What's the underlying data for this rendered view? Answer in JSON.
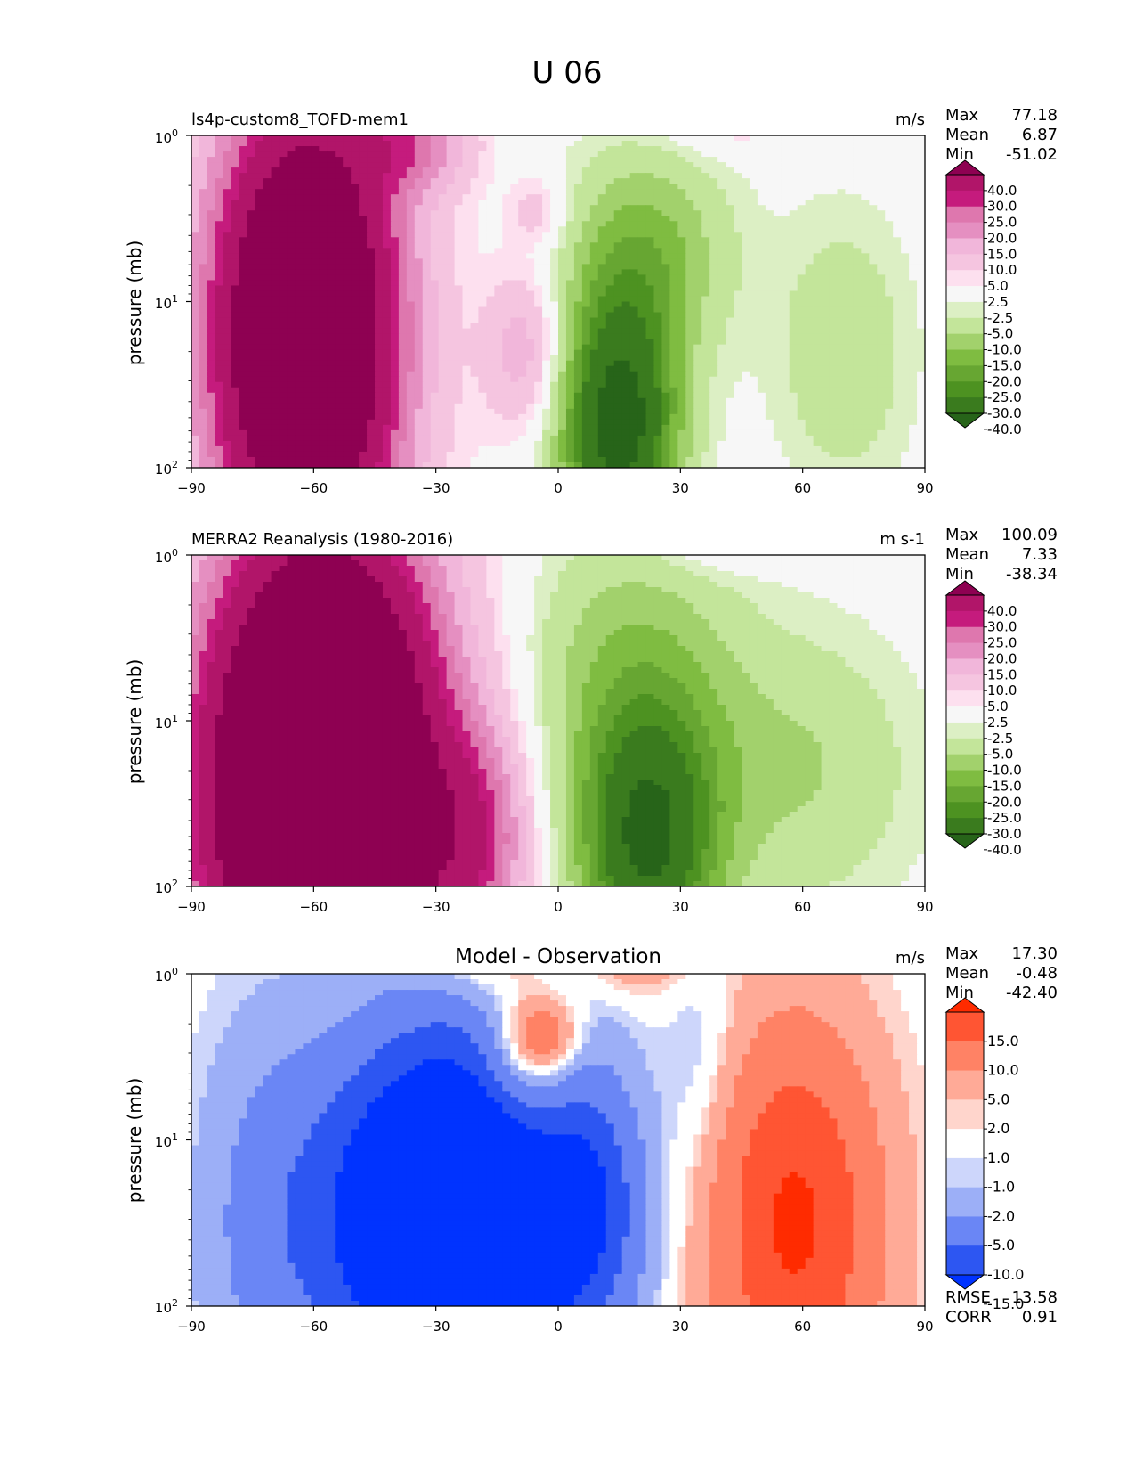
{
  "figure": {
    "title": "U 06"
  },
  "colors": {
    "main_levels": [
      -40,
      -30,
      -25,
      -20,
      -15,
      -10,
      -5,
      -2.5,
      2.5,
      5,
      10,
      15,
      20,
      25,
      30,
      40
    ],
    "main_bins": [
      "#276419",
      "#3a7b1e",
      "#4d9221",
      "#67a632",
      "#7fbc41",
      "#a2d16c",
      "#c3e59a",
      "#dcefc4",
      "#f7f7f7",
      "#fde0ef",
      "#f5c5e0",
      "#f1b6da",
      "#e58fc1",
      "#de77ae",
      "#c51b7d",
      "#b11569",
      "#8e0152"
    ],
    "diff_levels": [
      -15,
      -10,
      -5,
      -2,
      -1,
      1,
      2,
      5,
      10,
      15
    ],
    "diff_bins": [
      "#0033ff",
      "#2d56f2",
      "#6a86f5",
      "#9caff7",
      "#cdd6fb",
      "#ffffff",
      "#ffd5cc",
      "#ffaa97",
      "#ff8265",
      "#ff5533",
      "#ff2b00"
    ]
  },
  "chart_data": [
    {
      "type": "contourf",
      "id": "model",
      "left_title": "ls4p-custom8_TOFD-mem1",
      "right_title": "m/s",
      "ylabel": "pressure (mb)",
      "xlim": [
        -90,
        90
      ],
      "xticks": [
        "−90",
        "−60",
        "−30",
        "0",
        "30",
        "60",
        "90"
      ],
      "ylim_mb": [
        100,
        1
      ],
      "yscale": "log",
      "yticks": [
        {
          "base": "10",
          "exp": "0"
        },
        {
          "base": "10",
          "exp": "1"
        },
        {
          "base": "10",
          "exp": "2"
        }
      ],
      "stats": [
        {
          "label": "Max",
          "value": "77.18"
        },
        {
          "label": "Mean",
          "value": "6.87"
        },
        {
          "label": "Min",
          "value": "-51.02"
        }
      ],
      "colorbar": {
        "scheme": "main",
        "tick_labels": [
          "40.0",
          "30.0",
          "25.0",
          "20.0",
          "15.0",
          "10.0",
          "5.0",
          "2.5",
          "-2.5",
          "-5.0",
          "-10.0",
          "-15.0",
          "-20.0",
          "-25.0",
          "-30.0",
          "-40.0"
        ]
      },
      "field": {
        "gaussians": [
          {
            "lat": -62,
            "logp": 0.8,
            "slat": 16,
            "slogp": 1.0,
            "amp": 75
          },
          {
            "lat": -35,
            "logp": 1.95,
            "slat": 10,
            "slogp": 0.2,
            "amp": 16
          },
          {
            "lat": -8,
            "logp": 0.7,
            "slat": 7,
            "slogp": 0.35,
            "amp": 14
          },
          {
            "lat": -5,
            "logp": 1.55,
            "slat": 5,
            "slogp": 0.15,
            "amp": 8
          },
          {
            "lat": 15,
            "logp": 0.25,
            "slat": 10,
            "slogp": 0.55,
            "amp": -46
          },
          {
            "lat": 22,
            "logp": 1.3,
            "slat": 14,
            "slogp": 0.45,
            "amp": -16
          },
          {
            "lat": 70,
            "logp": 0.7,
            "slat": 12,
            "slogp": 0.6,
            "amp": -9
          },
          {
            "lat": 40,
            "logp": 2.05,
            "slat": 12,
            "slogp": 0.12,
            "amp": 5
          }
        ]
      }
    },
    {
      "type": "contourf",
      "id": "obs",
      "left_title": "MERRA2 Reanalysis (1980-2016)",
      "right_title": "m s-1",
      "ylabel": "pressure (mb)",
      "xlim": [
        -90,
        90
      ],
      "xticks": [
        "−90",
        "−60",
        "−30",
        "0",
        "30",
        "60",
        "90"
      ],
      "ylim_mb": [
        100,
        1
      ],
      "yscale": "log",
      "yticks": [
        {
          "base": "10",
          "exp": "0"
        },
        {
          "base": "10",
          "exp": "1"
        },
        {
          "base": "10",
          "exp": "2"
        }
      ],
      "stats": [
        {
          "label": "Max",
          "value": "100.09"
        },
        {
          "label": "Mean",
          "value": "7.33"
        },
        {
          "label": "Min",
          "value": "-38.34"
        }
      ],
      "colorbar": {
        "scheme": "main",
        "tick_labels": [
          "40.0",
          "30.0",
          "25.0",
          "20.0",
          "15.0",
          "10.0",
          "5.0",
          "2.5",
          "-2.5",
          "-5.0",
          "-10.0",
          "-15.0",
          "-20.0",
          "-25.0",
          "-30.0",
          "-40.0"
        ]
      },
      "field": {
        "gaussians": [
          {
            "lat": -58,
            "logp": 0.6,
            "slat": 20,
            "slogp": 1.1,
            "amp": 95
          },
          {
            "lat": -20,
            "logp": 0.3,
            "slat": 9,
            "slogp": 0.45,
            "amp": 20
          },
          {
            "lat": 22,
            "logp": 0.25,
            "slat": 12,
            "slogp": 0.55,
            "amp": -40
          },
          {
            "lat": 18,
            "logp": 1.3,
            "slat": 18,
            "slogp": 0.6,
            "amp": -14
          },
          {
            "lat": 60,
            "logp": 0.7,
            "slat": 20,
            "slogp": 0.6,
            "amp": -10
          },
          {
            "lat": 40,
            "logp": 2.05,
            "slat": 12,
            "slogp": 0.12,
            "amp": 5
          }
        ]
      }
    },
    {
      "type": "contourf",
      "id": "diff",
      "center_title": "Model - Observation",
      "right_title": "m/s",
      "ylabel": "pressure (mb)",
      "xlim": [
        -90,
        90
      ],
      "xticks": [
        "−90",
        "−60",
        "−30",
        "0",
        "30",
        "60",
        "90"
      ],
      "ylim_mb": [
        100,
        1
      ],
      "yscale": "log",
      "yticks": [
        {
          "base": "10",
          "exp": "0"
        },
        {
          "base": "10",
          "exp": "1"
        },
        {
          "base": "10",
          "exp": "2"
        }
      ],
      "stats": [
        {
          "label": "Max",
          "value": "17.30"
        },
        {
          "label": "Mean",
          "value": "-0.48"
        },
        {
          "label": "Min",
          "value": "-42.40"
        }
      ],
      "footer_stats": [
        {
          "label": "RMSE",
          "value": "13.58"
        },
        {
          "label": "CORR",
          "value": "0.91"
        }
      ],
      "colorbar": {
        "scheme": "diff",
        "tick_labels": [
          "15.0",
          "10.0",
          "5.0",
          "2.0",
          "1.0",
          "-1.0",
          "-2.0",
          "-5.0",
          "-10.0",
          "-15.0"
        ]
      },
      "field": {
        "gaussians": [
          {
            "lat": -25,
            "logp": 0.55,
            "slat": 22,
            "slogp": 0.75,
            "amp": -34
          },
          {
            "lat": -72,
            "logp": 0.5,
            "slat": 12,
            "slogp": 0.9,
            "amp": -5
          },
          {
            "lat": 8,
            "logp": 0.6,
            "slat": 9,
            "slogp": 0.5,
            "amp": -8
          },
          {
            "lat": -8,
            "logp": 1.45,
            "slat": 8,
            "slogp": 0.35,
            "amp": 10
          },
          {
            "lat": -3,
            "logp": 1.62,
            "slat": 6,
            "slogp": 0.15,
            "amp": 8
          },
          {
            "lat": 58,
            "logp": 0.5,
            "slat": 15,
            "slogp": 0.85,
            "amp": 16
          },
          {
            "lat": -20,
            "logp": 2.05,
            "slat": 10,
            "slogp": 0.15,
            "amp": 4
          },
          {
            "lat": 20,
            "logp": 2.05,
            "slat": 10,
            "slogp": 0.15,
            "amp": 4
          },
          {
            "lat": 35,
            "logp": 1.5,
            "slat": 6,
            "slogp": 0.5,
            "amp": -3
          }
        ]
      }
    }
  ]
}
